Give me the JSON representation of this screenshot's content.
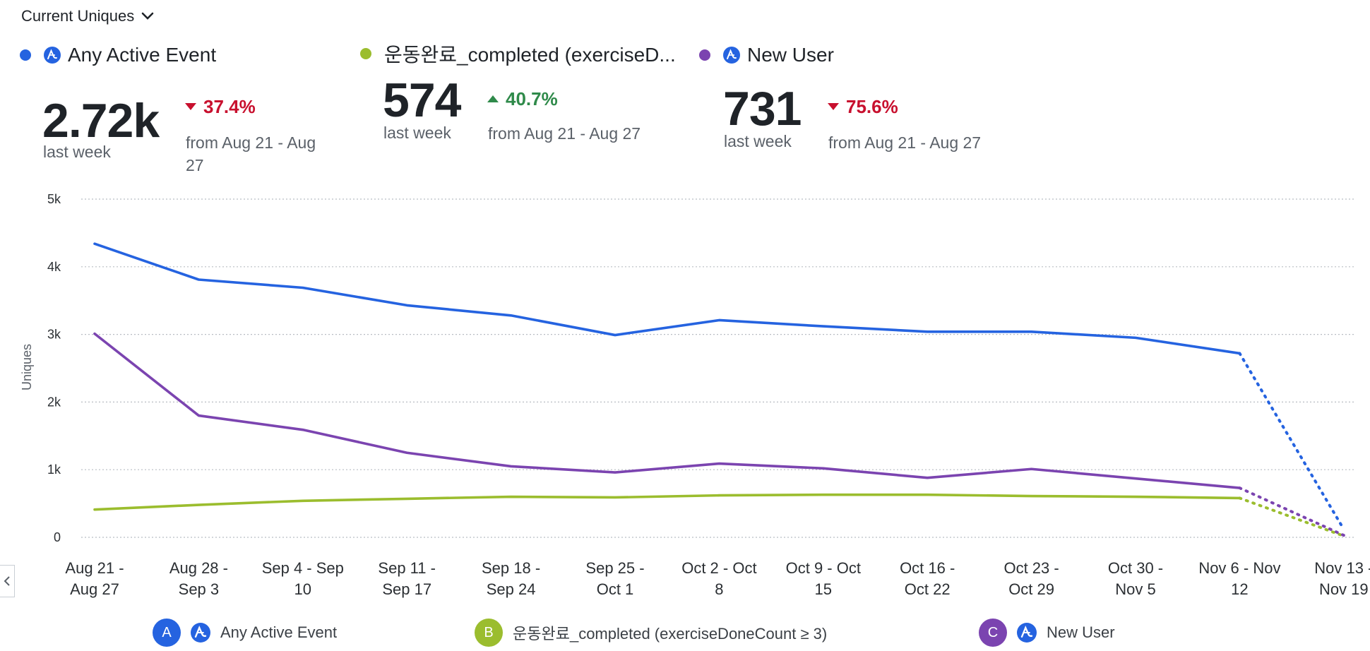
{
  "header": {
    "metric_label": "Current Uniques"
  },
  "summaries": [
    {
      "key": "A",
      "name": "Any Active Event",
      "value": "2.72k",
      "period": "last week",
      "change": "37.4%",
      "direction": "down",
      "from_text": "from Aug 21 - Aug 27",
      "color": "#2563e0",
      "has_icon": true
    },
    {
      "key": "B",
      "name": "운동완료_completed (exerciseD...",
      "value": "574",
      "period": "last week",
      "change": "40.7%",
      "direction": "up",
      "from_text": "from Aug 21 - Aug 27",
      "color": "#9bbd2e",
      "has_icon": false
    },
    {
      "key": "C",
      "name": "New User",
      "value": "731",
      "period": "last week",
      "change": "75.6%",
      "direction": "down",
      "from_text": "from Aug 21 - Aug 27",
      "color": "#7b44b0",
      "has_icon": true
    }
  ],
  "chart_data": {
    "type": "line",
    "ylabel": "Uniques",
    "xlabel": "",
    "ylim": [
      0,
      5000
    ],
    "yticks": [
      0,
      1000,
      2000,
      3000,
      4000,
      5000
    ],
    "ytick_labels": [
      "0",
      "1k",
      "2k",
      "3k",
      "4k",
      "5k"
    ],
    "grid": true,
    "legend_position": "bottom",
    "categories": [
      [
        "Aug 21 -",
        "Aug 27"
      ],
      [
        "Aug 28 -",
        "Sep 3"
      ],
      [
        "Sep 4 - Sep",
        "10"
      ],
      [
        "Sep 11 -",
        "Sep 17"
      ],
      [
        "Sep 18 -",
        "Sep 24"
      ],
      [
        "Sep 25 -",
        "Oct 1"
      ],
      [
        "Oct 2 - Oct",
        "8"
      ],
      [
        "Oct 9 - Oct",
        "15"
      ],
      [
        "Oct 16 -",
        "Oct 22"
      ],
      [
        "Oct 23 -",
        "Oct 29"
      ],
      [
        "Oct 30 -",
        "Nov 5"
      ],
      [
        "Nov 6 - Nov",
        "12"
      ],
      [
        "Nov 13 -",
        "Nov 19"
      ]
    ],
    "incomplete_from_index": 11,
    "series": [
      {
        "key": "A",
        "name": "Any Active Event",
        "color": "#2563e0",
        "values": [
          4340,
          3810,
          3690,
          3430,
          3280,
          2990,
          3210,
          3120,
          3040,
          3040,
          2950,
          2720,
          120
        ]
      },
      {
        "key": "B",
        "name": "운동완료_completed (exerciseDoneCount ≥ 3)",
        "color": "#9bbd2e",
        "values": [
          410,
          480,
          540,
          570,
          600,
          590,
          620,
          630,
          630,
          610,
          600,
          580,
          20
        ]
      },
      {
        "key": "C",
        "name": "New User",
        "color": "#7b44b0",
        "values": [
          3010,
          1800,
          1590,
          1250,
          1050,
          960,
          1090,
          1020,
          880,
          1010,
          870,
          730,
          30
        ]
      }
    ]
  }
}
